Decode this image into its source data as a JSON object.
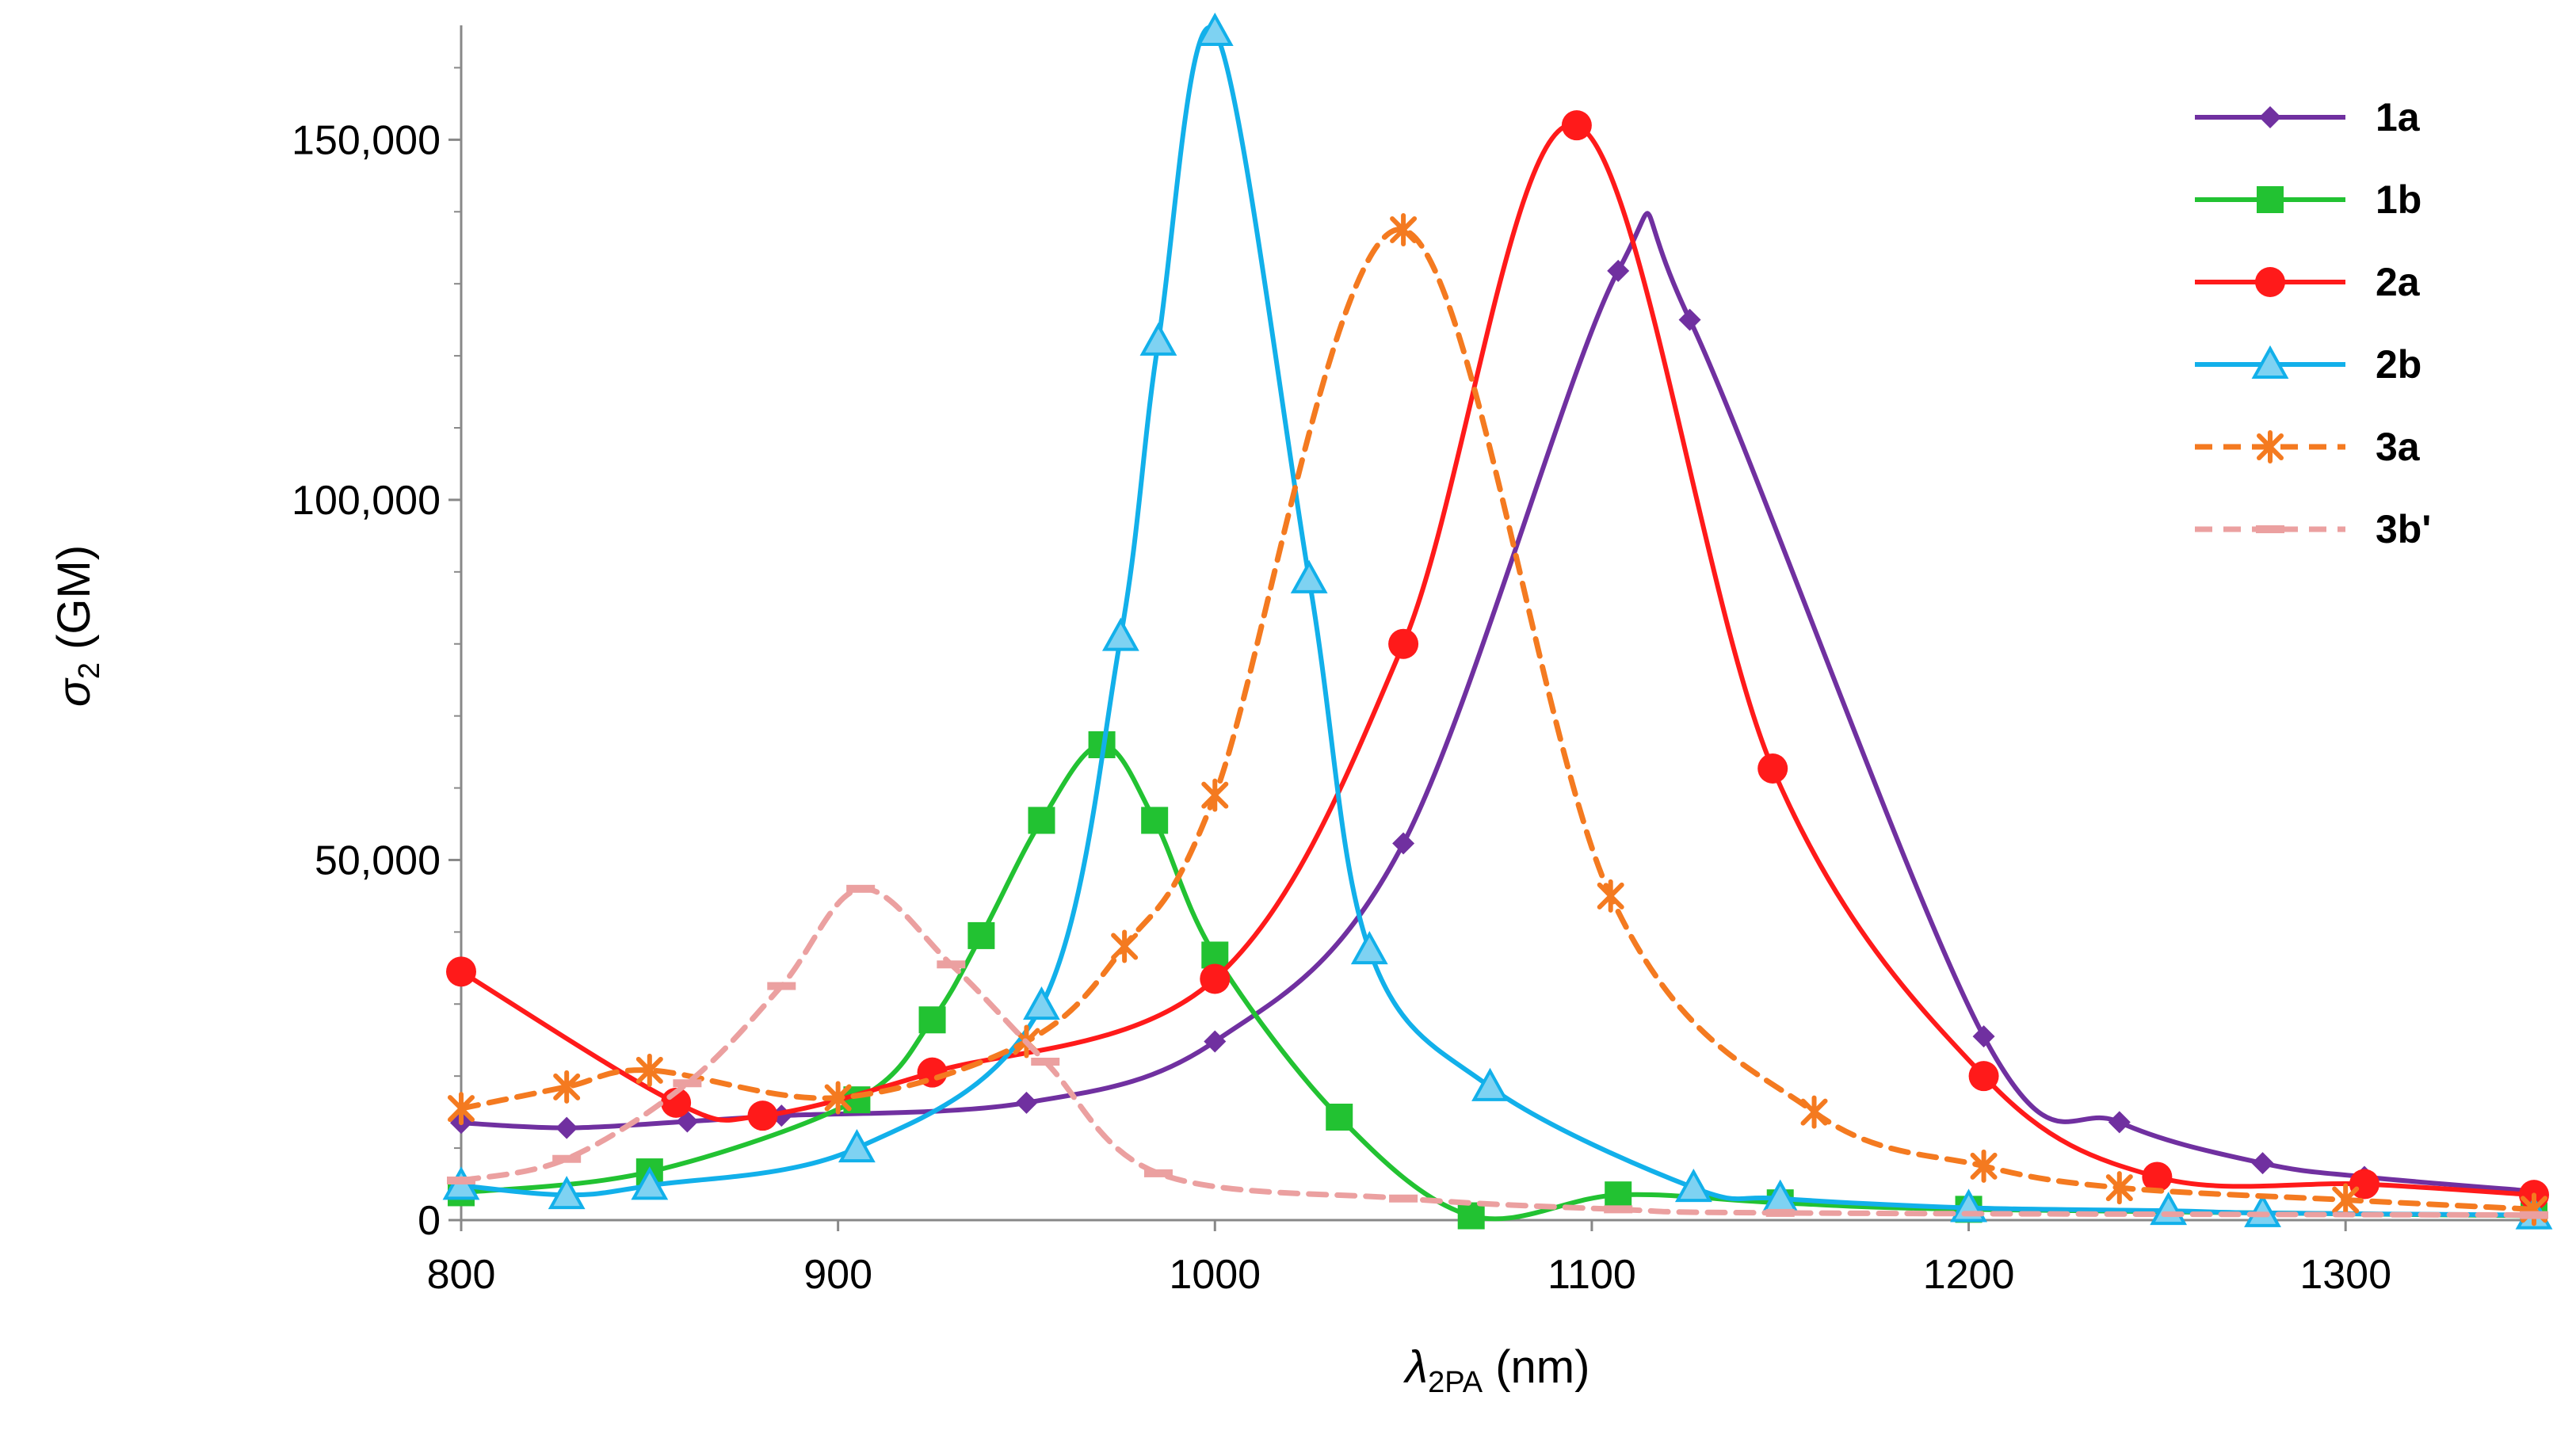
{
  "chart_data": {
    "type": "line",
    "title": "",
    "xlabel": "λ2PA (nm)",
    "ylabel": "σ2 (GM)",
    "xlabel_parts": {
      "symbol": "λ",
      "sub": "2PA",
      "unit": " (nm)"
    },
    "ylabel_parts": {
      "symbol": "σ",
      "sub": "2",
      "unit": " (GM)"
    },
    "xlim": [
      800,
      1350
    ],
    "ylim": [
      0,
      165000
    ],
    "x_ticks": [
      800,
      900,
      1000,
      1100,
      1200,
      1300
    ],
    "x_tick_labels": [
      "800",
      "900",
      "1000",
      "1100",
      "1200",
      "1300"
    ],
    "y_ticks": [
      0,
      50000,
      100000,
      150000
    ],
    "y_tick_labels": [
      "0",
      "50,000",
      "100,000",
      "150,000"
    ],
    "grid": false,
    "legend_position": "top-right",
    "series": [
      {
        "name": "1a",
        "color": "#7030a0",
        "marker": "diamond",
        "dashed": false,
        "points": [
          [
            800,
            13500
          ],
          [
            828,
            12800
          ],
          [
            860,
            13700
          ],
          [
            885,
            14500
          ],
          [
            950,
            16300
          ],
          [
            1000,
            24800
          ],
          [
            1050,
            52300
          ],
          [
            1107,
            131800
          ],
          [
            1126,
            125000
          ],
          [
            1204,
            25500
          ],
          [
            1240,
            13600
          ],
          [
            1278,
            7900
          ],
          [
            1305,
            6000
          ],
          [
            1350,
            4000
          ]
        ]
      },
      {
        "name": "1b",
        "color": "#22c232",
        "marker": "square",
        "dashed": false,
        "points": [
          [
            800,
            3800
          ],
          [
            850,
            6700
          ],
          [
            905,
            16700
          ],
          [
            925,
            27800
          ],
          [
            938,
            39500
          ],
          [
            954,
            55500
          ],
          [
            970,
            66000
          ],
          [
            984,
            55500
          ],
          [
            1000,
            36800
          ],
          [
            1033,
            14300
          ],
          [
            1068,
            600
          ],
          [
            1107,
            3500
          ],
          [
            1150,
            2400
          ],
          [
            1200,
            1500
          ],
          [
            1350,
            600
          ]
        ]
      },
      {
        "name": "2a",
        "color": "#ff1a1a",
        "marker": "circle",
        "dashed": false,
        "points": [
          [
            800,
            34500
          ],
          [
            857,
            16300
          ],
          [
            880,
            14500
          ],
          [
            925,
            20500
          ],
          [
            1000,
            33500
          ],
          [
            1050,
            80000
          ],
          [
            1096,
            152000
          ],
          [
            1148,
            62700
          ],
          [
            1204,
            20000
          ],
          [
            1250,
            6000
          ],
          [
            1305,
            5000
          ],
          [
            1350,
            3500
          ]
        ]
      },
      {
        "name": "2b",
        "color": "#12b0ea",
        "marker": "triangle",
        "dashed": false,
        "points": [
          [
            800,
            4800
          ],
          [
            828,
            3500
          ],
          [
            850,
            4800
          ],
          [
            905,
            10000
          ],
          [
            954,
            29800
          ],
          [
            975,
            81000
          ],
          [
            985,
            122000
          ],
          [
            1000,
            165000
          ],
          [
            1025,
            89000
          ],
          [
            1041,
            37500
          ],
          [
            1073,
            18500
          ],
          [
            1127,
            4500
          ],
          [
            1150,
            3000
          ],
          [
            1200,
            1700
          ],
          [
            1253,
            1300
          ],
          [
            1278,
            1000
          ],
          [
            1350,
            700
          ]
        ]
      },
      {
        "name": "3a",
        "color": "#f47a20",
        "marker": "star",
        "dashed": true,
        "points": [
          [
            800,
            15500
          ],
          [
            828,
            18500
          ],
          [
            850,
            20800
          ],
          [
            900,
            17000
          ],
          [
            950,
            24800
          ],
          [
            976,
            38000
          ],
          [
            1000,
            59000
          ],
          [
            1050,
            137500
          ],
          [
            1105,
            45000
          ],
          [
            1159,
            15000
          ],
          [
            1204,
            7500
          ],
          [
            1240,
            4500
          ],
          [
            1300,
            2800
          ],
          [
            1350,
            1500
          ]
        ]
      },
      {
        "name": "3b'",
        "color": "#eba0a0",
        "marker": "dash",
        "dashed": true,
        "points": [
          [
            800,
            5500
          ],
          [
            828,
            8500
          ],
          [
            860,
            19000
          ],
          [
            885,
            32500
          ],
          [
            906,
            46000
          ],
          [
            930,
            35500
          ],
          [
            955,
            22000
          ],
          [
            985,
            6500
          ],
          [
            1050,
            3000
          ],
          [
            1107,
            1500
          ],
          [
            1150,
            1000
          ],
          [
            1350,
            700
          ]
        ]
      }
    ]
  }
}
